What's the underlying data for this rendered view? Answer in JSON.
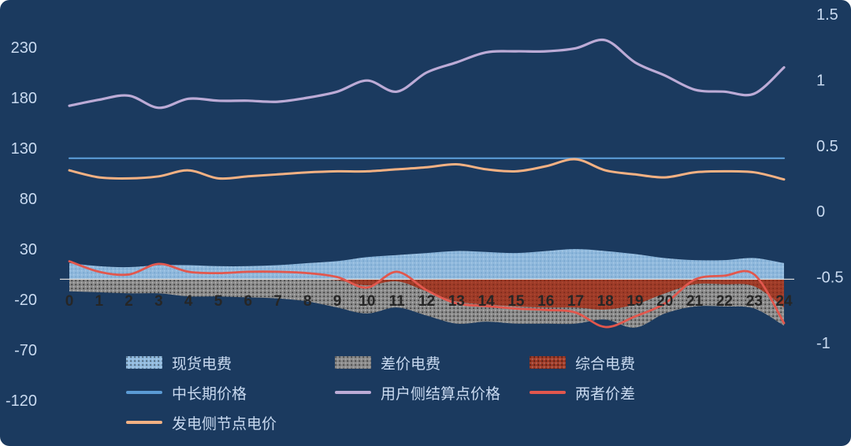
{
  "panel": {
    "background": "#1B3A5F"
  },
  "chart_data": {
    "type": "combo",
    "grid": "off",
    "legend_position": "bottom-left",
    "x": [
      0,
      1,
      2,
      3,
      4,
      5,
      6,
      7,
      8,
      9,
      10,
      11,
      12,
      13,
      14,
      15,
      16,
      17,
      18,
      19,
      20,
      21,
      22,
      23,
      24
    ],
    "x_labels": [
      "0",
      "1",
      "2",
      "3",
      "4",
      "5",
      "6",
      "7",
      "8",
      "9",
      "10",
      "11",
      "12",
      "13",
      "14",
      "15",
      "16",
      "17",
      "18",
      "19",
      "20",
      "21",
      "22",
      "23",
      "24"
    ],
    "left_axis": {
      "min": -120,
      "max": 230,
      "ticks": [
        230,
        180,
        130,
        80,
        30,
        -20,
        -70,
        -120
      ],
      "tick_labels": [
        "230",
        "180",
        "130",
        "80",
        "30",
        "-20",
        "-70",
        "-120"
      ]
    },
    "right_axis": {
      "min": -1.0,
      "max": 1.5,
      "ticks": [
        1.5,
        1.0,
        0.5,
        0.0,
        -0.5,
        -1.0
      ],
      "tick_labels": [
        "1.5",
        "1",
        "0.5",
        "0",
        "-0.5",
        "-1"
      ]
    },
    "zero_line": {
      "value": 0,
      "color": "#D9D9D9"
    },
    "series": [
      {
        "name": "现货电费",
        "type": "area",
        "axis": "left",
        "color": "#8FB8DC",
        "fill_pattern": "speckle",
        "values": [
          16,
          13,
          12,
          14,
          14,
          13,
          13,
          14,
          16,
          18,
          22,
          24,
          26,
          28,
          27,
          26,
          28,
          30,
          28,
          25,
          21,
          19,
          19,
          21,
          16
        ]
      },
      {
        "name": "差价电费",
        "type": "area",
        "axis": "left",
        "color": "#8A8A8A",
        "fill_pattern": "speckle",
        "values": [
          -12,
          -13,
          -14,
          -14,
          -17,
          -17,
          -18,
          -19,
          -22,
          -28,
          -34,
          -28,
          -36,
          -44,
          -42,
          -44,
          -44,
          -44,
          -40,
          -48,
          -34,
          -27,
          -27,
          -29,
          -46
        ]
      },
      {
        "name": "综合电费",
        "type": "area",
        "axis": "left",
        "color": "#9E3B28",
        "fill_pattern": "speckle",
        "values": [
          0,
          0,
          0,
          0,
          0,
          0,
          0,
          0,
          0,
          -1,
          -6,
          -2,
          -12,
          -22,
          -25,
          -27,
          -28,
          -28,
          -30,
          -25,
          -14,
          -5,
          -5,
          -7,
          -28
        ]
      },
      {
        "name": "中长期价格",
        "type": "line",
        "axis": "left",
        "color": "#5B9BD5",
        "values": [
          120,
          120,
          120,
          120,
          120,
          120,
          120,
          120,
          120,
          120,
          120,
          120,
          120,
          120,
          120,
          120,
          120,
          120,
          120,
          120,
          120,
          120,
          120,
          120,
          120
        ]
      },
      {
        "name": "用户侧结算点价格",
        "type": "line",
        "axis": "left",
        "color": "#BCABD6",
        "values": [
          172,
          178,
          182,
          170,
          179,
          177,
          177,
          176,
          180,
          186,
          197,
          186,
          205,
          215,
          225,
          226,
          226,
          229,
          237,
          215,
          202,
          188,
          186,
          184,
          210
        ]
      },
      {
        "name": "两者价差",
        "type": "line",
        "axis": "right",
        "color": "#E2574D",
        "values": [
          -0.38,
          -0.46,
          -0.48,
          -0.4,
          -0.46,
          -0.47,
          -0.46,
          -0.46,
          -0.47,
          -0.5,
          -0.58,
          -0.46,
          -0.6,
          -0.7,
          -0.72,
          -0.74,
          -0.75,
          -0.77,
          -0.88,
          -0.8,
          -0.7,
          -0.52,
          -0.49,
          -0.48,
          -0.85
        ]
      },
      {
        "name": "发电侧节点电价",
        "type": "line",
        "axis": "left",
        "color": "#F4B183",
        "values": [
          108,
          101,
          100,
          102,
          108,
          100,
          102,
          104,
          106,
          107,
          107,
          109,
          111,
          114,
          109,
          107,
          112,
          119,
          108,
          104,
          101,
          106,
          107,
          106,
          99
        ]
      }
    ]
  }
}
